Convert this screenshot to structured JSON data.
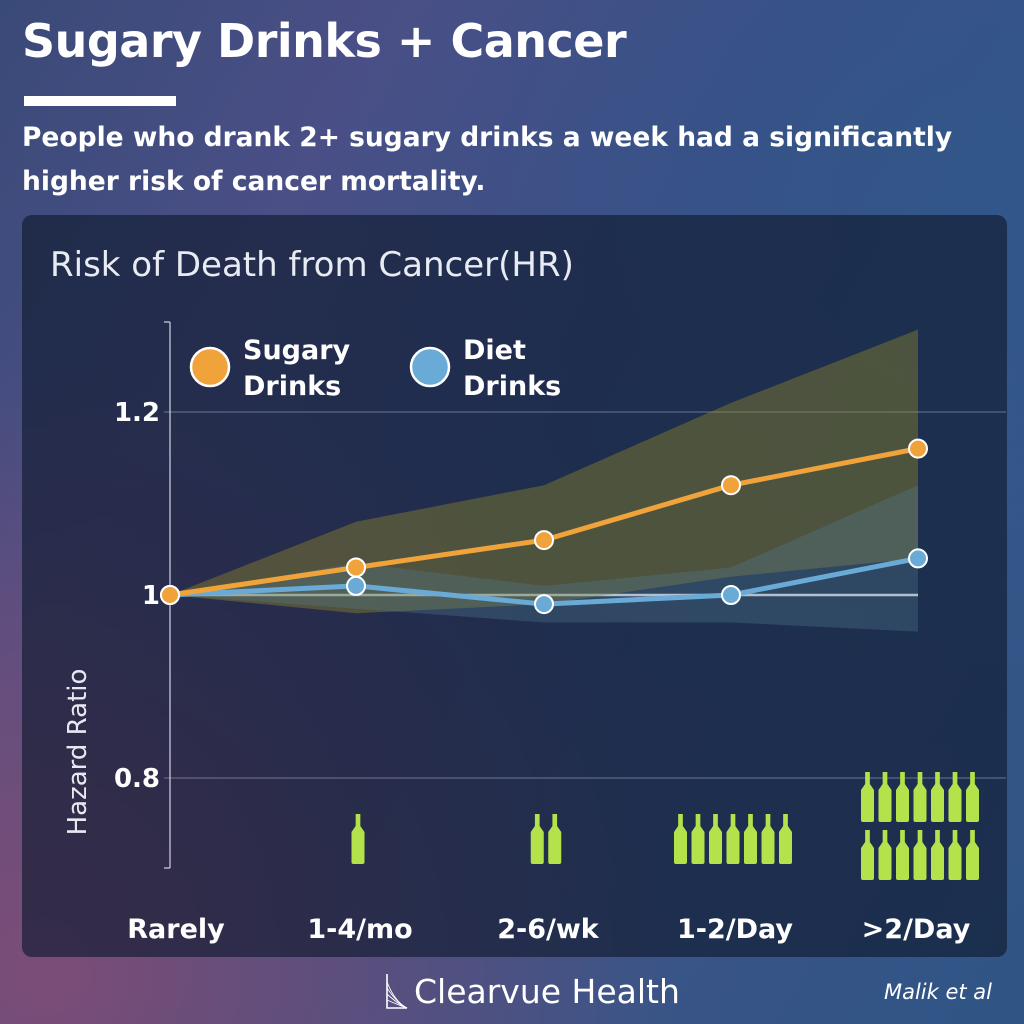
{
  "header": {
    "title": "Sugary Drinks + Cancer",
    "subtitle": "People who drank 2+ sugary drinks a week had a significantly higher risk of cancer mortality."
  },
  "footer": {
    "brand": "Clearvue Health",
    "credit": "Malik et al"
  },
  "colors": {
    "sugary": "#f0a33a",
    "diet": "#6aaad6",
    "bottle": "#b4e24a",
    "reference_line": "#e6e9f0"
  },
  "icons": {
    "bottle": "bottle-icon",
    "logo": "clearvue-logo-icon"
  },
  "chart_data": {
    "type": "line",
    "title": "Risk of Death from Cancer(HR)",
    "xlabel": "",
    "ylabel": "Hazard Ratio",
    "categories": [
      "Rarely",
      "1-4/mo",
      "2-6/wk",
      "1-2/Day",
      ">2/Day"
    ],
    "ylim": [
      0.7,
      1.27
    ],
    "yticks": [
      0.8,
      1,
      1.2
    ],
    "ytick_labels": [
      "0.8",
      "1",
      "1.2"
    ],
    "reference_line": 1.0,
    "grid": true,
    "legend_position": "top-left",
    "series": [
      {
        "name": "Sugary Drinks",
        "values": [
          1.0,
          1.03,
          1.06,
          1.12,
          1.16
        ],
        "ci_lower": [
          1.0,
          0.98,
          0.99,
          1.02,
          1.04
        ],
        "ci_upper": [
          1.0,
          1.08,
          1.12,
          1.21,
          1.29
        ],
        "color": "#f0a33a"
      },
      {
        "name": "Diet Drinks",
        "values": [
          1.0,
          1.01,
          0.99,
          1.0,
          1.04
        ],
        "ci_lower": [
          1.0,
          0.985,
          0.97,
          0.97,
          0.96
        ],
        "ci_upper": [
          1.0,
          1.035,
          1.01,
          1.03,
          1.12
        ],
        "color": "#6aaad6"
      }
    ],
    "bottle_counts": [
      0,
      1,
      2,
      7,
      14
    ]
  }
}
